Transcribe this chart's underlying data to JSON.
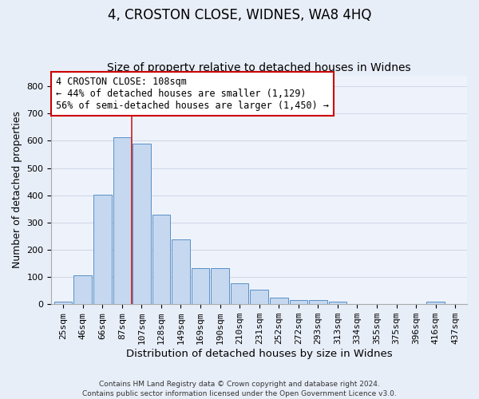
{
  "title": "4, CROSTON CLOSE, WIDNES, WA8 4HQ",
  "subtitle": "Size of property relative to detached houses in Widnes",
  "xlabel": "Distribution of detached houses by size in Widnes",
  "ylabel": "Number of detached properties",
  "footer_line1": "Contains HM Land Registry data © Crown copyright and database right 2024.",
  "footer_line2": "Contains public sector information licensed under the Open Government Licence v3.0.",
  "bar_labels": [
    "25sqm",
    "46sqm",
    "66sqm",
    "87sqm",
    "107sqm",
    "128sqm",
    "149sqm",
    "169sqm",
    "190sqm",
    "210sqm",
    "231sqm",
    "252sqm",
    "272sqm",
    "293sqm",
    "313sqm",
    "334sqm",
    "355sqm",
    "375sqm",
    "396sqm",
    "416sqm",
    "437sqm"
  ],
  "bar_values": [
    8,
    105,
    403,
    612,
    591,
    330,
    237,
    133,
    133,
    78,
    52,
    23,
    14,
    16,
    9,
    1,
    0,
    0,
    0,
    8,
    0
  ],
  "bar_color": "#c5d8f0",
  "bar_edge_color": "#5a8fc5",
  "annotation_title": "4 CROSTON CLOSE: 108sqm",
  "annotation_line2": "← 44% of detached houses are smaller (1,129)",
  "annotation_line3": "56% of semi-detached houses are larger (1,450) →",
  "annotation_box_facecolor": "#ffffff",
  "annotation_box_edgecolor": "#cc0000",
  "vline_color": "#cc2222",
  "vline_x_index": 4,
  "ylim": [
    0,
    840
  ],
  "yticks": [
    0,
    100,
    200,
    300,
    400,
    500,
    600,
    700,
    800
  ],
  "bg_color": "#e8eef8",
  "plot_bg_color": "#eef3fb",
  "grid_color": "#d0d8e8",
  "title_fontsize": 12,
  "subtitle_fontsize": 10,
  "xlabel_fontsize": 9.5,
  "ylabel_fontsize": 9,
  "tick_fontsize": 8,
  "annotation_fontsize": 8.5
}
